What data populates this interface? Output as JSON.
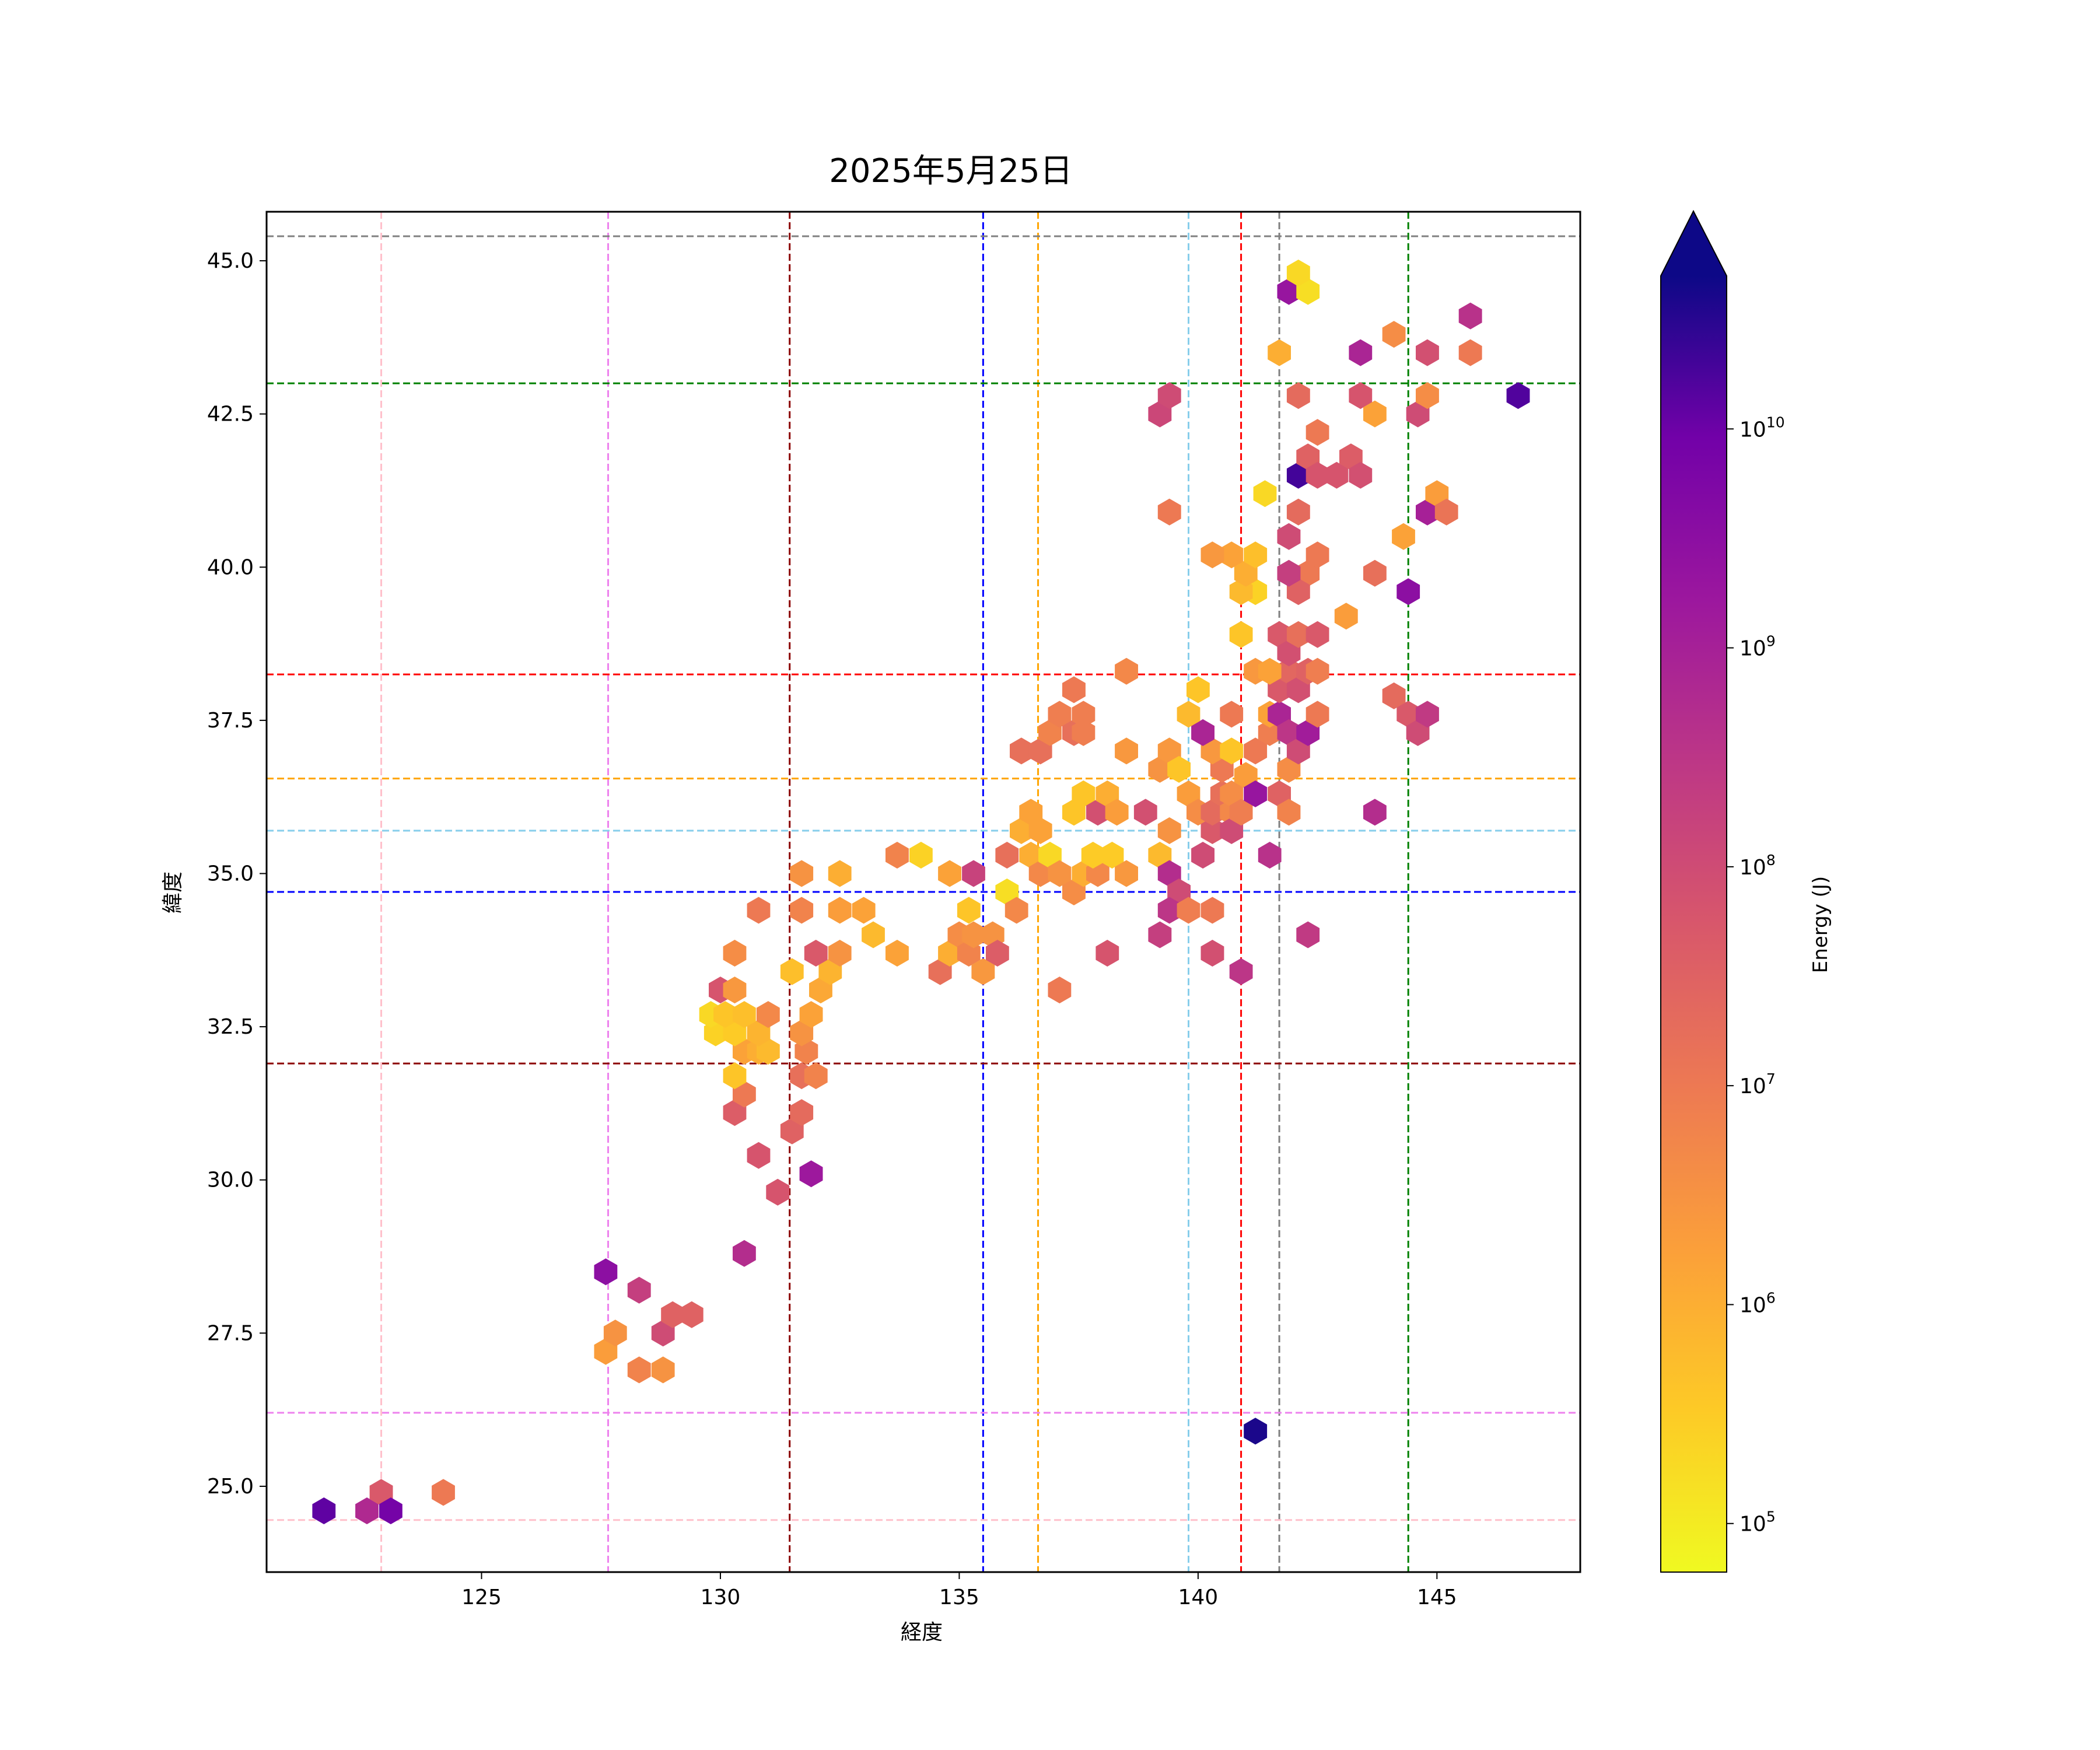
{
  "chart_data": {
    "type": "hexbin",
    "title": "2025年5月25日",
    "xlabel": "経度",
    "ylabel": "緯度",
    "xlim": [
      120.5,
      148.0
    ],
    "ylim": [
      23.6,
      45.8
    ],
    "x_ticks": [
      125,
      130,
      135,
      140,
      145
    ],
    "x_tick_labels": [
      "125",
      "130",
      "135",
      "140",
      "145"
    ],
    "y_ticks": [
      25.0,
      27.5,
      30.0,
      32.5,
      35.0,
      37.5,
      40.0,
      42.5,
      45.0
    ],
    "y_tick_labels": [
      "25.0",
      "27.5",
      "30.0",
      "32.5",
      "35.0",
      "37.5",
      "40.0",
      "42.5",
      "45.0"
    ],
    "grid": false,
    "colorbar": {
      "label": "Energy (J)",
      "scale": "log",
      "colormap": "plasma_r",
      "range": [
        60000,
        50000000000
      ],
      "extend": "max",
      "ticks": [
        100000,
        1000000,
        10000000,
        100000000,
        1000000000,
        10000000000
      ],
      "tick_bases": [
        "10",
        "10",
        "10",
        "10",
        "10",
        "10"
      ],
      "tick_exponents": [
        "5",
        "6",
        "7",
        "8",
        "9",
        "10"
      ]
    },
    "reference_lines": {
      "vertical": [
        {
          "x": 122.9,
          "color": "#ffc0cb"
        },
        {
          "x": 127.65,
          "color": "#ee82ee"
        },
        {
          "x": 131.45,
          "color": "#8b0000"
        },
        {
          "x": 135.5,
          "color": "#0000ff"
        },
        {
          "x": 136.65,
          "color": "#ffa500"
        },
        {
          "x": 139.8,
          "color": "#87ceeb"
        },
        {
          "x": 140.9,
          "color": "#ff0000"
        },
        {
          "x": 141.7,
          "color": "#808080"
        },
        {
          "x": 144.4,
          "color": "#008000"
        }
      ],
      "horizontal": [
        {
          "y": 24.45,
          "color": "#ffc0cb"
        },
        {
          "y": 26.2,
          "color": "#ee82ee"
        },
        {
          "y": 31.9,
          "color": "#8b0000"
        },
        {
          "y": 34.7,
          "color": "#0000ff"
        },
        {
          "y": 35.7,
          "color": "#87ceeb"
        },
        {
          "y": 36.55,
          "color": "#ffa500"
        },
        {
          "y": 38.25,
          "color": "#ff0000"
        },
        {
          "y": 43.0,
          "color": "#008000"
        },
        {
          "y": 45.4,
          "color": "#808080"
        }
      ]
    },
    "bins": [
      {
        "x": 121.7,
        "y": 24.6,
        "e": 10.1
      },
      {
        "x": 122.6,
        "y": 24.6,
        "e": 8.8
      },
      {
        "x": 122.9,
        "y": 24.9,
        "e": 7.7
      },
      {
        "x": 123.1,
        "y": 24.6,
        "e": 9.9
      },
      {
        "x": 124.2,
        "y": 24.9,
        "e": 7.0
      },
      {
        "x": 127.6,
        "y": 28.5,
        "e": 9.5
      },
      {
        "x": 128.3,
        "y": 28.2,
        "e": 8.3
      },
      {
        "x": 127.6,
        "y": 27.2,
        "e": 6.3
      },
      {
        "x": 127.8,
        "y": 27.5,
        "e": 6.5
      },
      {
        "x": 128.3,
        "y": 26.9,
        "e": 6.8
      },
      {
        "x": 128.8,
        "y": 26.9,
        "e": 6.5
      },
      {
        "x": 128.8,
        "y": 27.5,
        "e": 8.0
      },
      {
        "x": 129.0,
        "y": 27.8,
        "e": 7.5
      },
      {
        "x": 129.4,
        "y": 27.8,
        "e": 7.5
      },
      {
        "x": 130.5,
        "y": 28.8,
        "e": 8.7
      },
      {
        "x": 131.2,
        "y": 29.8,
        "e": 7.8
      },
      {
        "x": 131.9,
        "y": 30.1,
        "e": 9.2
      },
      {
        "x": 130.8,
        "y": 30.4,
        "e": 7.8
      },
      {
        "x": 131.5,
        "y": 30.8,
        "e": 7.5
      },
      {
        "x": 130.3,
        "y": 31.1,
        "e": 7.6
      },
      {
        "x": 131.7,
        "y": 31.1,
        "e": 7.3
      },
      {
        "x": 130.5,
        "y": 31.4,
        "e": 7.0
      },
      {
        "x": 130.3,
        "y": 31.7,
        "e": 5.6
      },
      {
        "x": 131.7,
        "y": 31.7,
        "e": 7.2
      },
      {
        "x": 132.0,
        "y": 31.7,
        "e": 6.8
      },
      {
        "x": 130.5,
        "y": 32.1,
        "e": 6.2
      },
      {
        "x": 130.8,
        "y": 32.1,
        "e": 6.0
      },
      {
        "x": 131.0,
        "y": 32.1,
        "e": 5.8
      },
      {
        "x": 131.8,
        "y": 32.1,
        "e": 6.8
      },
      {
        "x": 131.7,
        "y": 32.4,
        "e": 6.5
      },
      {
        "x": 129.9,
        "y": 32.4,
        "e": 5.4
      },
      {
        "x": 130.3,
        "y": 32.4,
        "e": 5.5
      },
      {
        "x": 130.8,
        "y": 32.4,
        "e": 5.9
      },
      {
        "x": 129.8,
        "y": 32.7,
        "e": 5.3
      },
      {
        "x": 130.1,
        "y": 32.7,
        "e": 5.6
      },
      {
        "x": 130.5,
        "y": 32.7,
        "e": 5.7
      },
      {
        "x": 131.0,
        "y": 32.7,
        "e": 6.7
      },
      {
        "x": 131.9,
        "y": 32.7,
        "e": 6.2
      },
      {
        "x": 130.0,
        "y": 33.1,
        "e": 7.8
      },
      {
        "x": 130.3,
        "y": 33.1,
        "e": 6.4
      },
      {
        "x": 132.1,
        "y": 33.1,
        "e": 6.1
      },
      {
        "x": 132.3,
        "y": 33.4,
        "e": 5.9
      },
      {
        "x": 131.5,
        "y": 33.4,
        "e": 5.7
      },
      {
        "x": 130.3,
        "y": 33.7,
        "e": 6.6
      },
      {
        "x": 132.0,
        "y": 33.7,
        "e": 7.7
      },
      {
        "x": 132.5,
        "y": 33.7,
        "e": 6.5
      },
      {
        "x": 130.8,
        "y": 34.4,
        "e": 7.0
      },
      {
        "x": 131.7,
        "y": 34.4,
        "e": 6.8
      },
      {
        "x": 132.5,
        "y": 34.4,
        "e": 6.3
      },
      {
        "x": 133.0,
        "y": 34.4,
        "e": 6.2
      },
      {
        "x": 133.2,
        "y": 34.0,
        "e": 5.8
      },
      {
        "x": 131.7,
        "y": 35.0,
        "e": 6.5
      },
      {
        "x": 132.5,
        "y": 35.0,
        "e": 6.0
      },
      {
        "x": 133.7,
        "y": 35.3,
        "e": 6.8
      },
      {
        "x": 134.2,
        "y": 35.3,
        "e": 5.4
      },
      {
        "x": 133.7,
        "y": 33.7,
        "e": 6.2
      },
      {
        "x": 134.6,
        "y": 33.4,
        "e": 7.2
      },
      {
        "x": 134.8,
        "y": 33.7,
        "e": 6.0
      },
      {
        "x": 134.8,
        "y": 35.0,
        "e": 6.2
      },
      {
        "x": 135.0,
        "y": 34.0,
        "e": 6.6
      },
      {
        "x": 135.2,
        "y": 34.4,
        "e": 5.6
      },
      {
        "x": 135.3,
        "y": 35.0,
        "e": 8.2
      },
      {
        "x": 135.2,
        "y": 33.7,
        "e": 6.8
      },
      {
        "x": 135.5,
        "y": 33.4,
        "e": 6.4
      },
      {
        "x": 135.3,
        "y": 34.0,
        "e": 6.5
      },
      {
        "x": 135.7,
        "y": 34.0,
        "e": 6.5
      },
      {
        "x": 135.8,
        "y": 33.7,
        "e": 7.6
      },
      {
        "x": 136.0,
        "y": 34.7,
        "e": 5.2
      },
      {
        "x": 136.0,
        "y": 35.3,
        "e": 7.2
      },
      {
        "x": 136.2,
        "y": 34.4,
        "e": 6.7
      },
      {
        "x": 136.3,
        "y": 35.7,
        "e": 6.0
      },
      {
        "x": 136.5,
        "y": 35.3,
        "e": 6.0
      },
      {
        "x": 136.7,
        "y": 35.0,
        "e": 6.7
      },
      {
        "x": 136.7,
        "y": 35.7,
        "e": 6.2
      },
      {
        "x": 136.9,
        "y": 35.3,
        "e": 5.3
      },
      {
        "x": 137.1,
        "y": 35.0,
        "e": 6.5
      },
      {
        "x": 137.1,
        "y": 33.1,
        "e": 7.0
      },
      {
        "x": 137.4,
        "y": 34.7,
        "e": 6.6
      },
      {
        "x": 137.6,
        "y": 35.0,
        "e": 6.0
      },
      {
        "x": 137.9,
        "y": 35.0,
        "e": 6.7
      },
      {
        "x": 137.8,
        "y": 35.3,
        "e": 5.5
      },
      {
        "x": 138.2,
        "y": 35.3,
        "e": 5.5
      },
      {
        "x": 138.5,
        "y": 35.0,
        "e": 6.4
      },
      {
        "x": 138.1,
        "y": 33.7,
        "e": 7.8
      },
      {
        "x": 136.5,
        "y": 36.0,
        "e": 6.2
      },
      {
        "x": 136.3,
        "y": 37.0,
        "e": 7.2
      },
      {
        "x": 136.7,
        "y": 37.0,
        "e": 7.2
      },
      {
        "x": 136.9,
        "y": 37.3,
        "e": 6.8
      },
      {
        "x": 137.1,
        "y": 37.6,
        "e": 6.9
      },
      {
        "x": 137.4,
        "y": 37.3,
        "e": 7.2
      },
      {
        "x": 137.4,
        "y": 38.0,
        "e": 7.0
      },
      {
        "x": 137.6,
        "y": 37.6,
        "e": 6.9
      },
      {
        "x": 137.6,
        "y": 37.3,
        "e": 6.9
      },
      {
        "x": 137.4,
        "y": 36.0,
        "e": 5.6
      },
      {
        "x": 137.6,
        "y": 36.3,
        "e": 5.6
      },
      {
        "x": 137.9,
        "y": 36.0,
        "e": 7.9
      },
      {
        "x": 138.1,
        "y": 36.3,
        "e": 6.0
      },
      {
        "x": 138.3,
        "y": 36.0,
        "e": 6.3
      },
      {
        "x": 138.5,
        "y": 37.0,
        "e": 6.4
      },
      {
        "x": 138.5,
        "y": 38.3,
        "e": 6.7
      },
      {
        "x": 138.9,
        "y": 36.0,
        "e": 7.9
      },
      {
        "x": 139.2,
        "y": 36.7,
        "e": 6.5
      },
      {
        "x": 139.4,
        "y": 37.0,
        "e": 6.4
      },
      {
        "x": 139.6,
        "y": 36.7,
        "e": 5.6
      },
      {
        "x": 139.2,
        "y": 35.3,
        "e": 5.8
      },
      {
        "x": 139.4,
        "y": 35.7,
        "e": 6.5
      },
      {
        "x": 139.4,
        "y": 35.0,
        "e": 8.7
      },
      {
        "x": 139.6,
        "y": 34.7,
        "e": 8.0
      },
      {
        "x": 139.2,
        "y": 34.0,
        "e": 8.3
      },
      {
        "x": 139.4,
        "y": 34.4,
        "e": 8.5
      },
      {
        "x": 139.8,
        "y": 34.4,
        "e": 6.9
      },
      {
        "x": 140.3,
        "y": 34.4,
        "e": 7.0
      },
      {
        "x": 140.3,
        "y": 33.7,
        "e": 7.9
      },
      {
        "x": 140.9,
        "y": 33.4,
        "e": 8.5
      },
      {
        "x": 141.2,
        "y": 25.9,
        "e": 10.6
      },
      {
        "x": 139.8,
        "y": 36.3,
        "e": 6.3
      },
      {
        "x": 140.0,
        "y": 36.0,
        "e": 6.6
      },
      {
        "x": 140.1,
        "y": 35.3,
        "e": 8.0
      },
      {
        "x": 140.3,
        "y": 35.7,
        "e": 7.7
      },
      {
        "x": 140.3,
        "y": 36.0,
        "e": 7.3
      },
      {
        "x": 140.5,
        "y": 36.3,
        "e": 7.2
      },
      {
        "x": 140.7,
        "y": 36.0,
        "e": 6.7
      },
      {
        "x": 140.7,
        "y": 35.7,
        "e": 8.0
      },
      {
        "x": 140.5,
        "y": 36.7,
        "e": 7.0
      },
      {
        "x": 140.7,
        "y": 36.3,
        "e": 6.6
      },
      {
        "x": 140.9,
        "y": 36.0,
        "e": 6.9
      },
      {
        "x": 140.3,
        "y": 37.0,
        "e": 6.4
      },
      {
        "x": 140.1,
        "y": 37.3,
        "e": 8.9
      },
      {
        "x": 139.8,
        "y": 37.6,
        "e": 5.8
      },
      {
        "x": 140.0,
        "y": 38.0,
        "e": 5.6
      },
      {
        "x": 140.7,
        "y": 37.6,
        "e": 7.0
      },
      {
        "x": 140.7,
        "y": 37.0,
        "e": 5.6
      },
      {
        "x": 141.0,
        "y": 36.6,
        "e": 6.3
      },
      {
        "x": 141.2,
        "y": 36.3,
        "e": 9.3
      },
      {
        "x": 141.5,
        "y": 35.3,
        "e": 8.6
      },
      {
        "x": 141.7,
        "y": 36.3,
        "e": 7.5
      },
      {
        "x": 141.9,
        "y": 36.0,
        "e": 6.8
      },
      {
        "x": 141.9,
        "y": 36.7,
        "e": 6.6
      },
      {
        "x": 141.2,
        "y": 37.0,
        "e": 7.0
      },
      {
        "x": 141.5,
        "y": 37.3,
        "e": 6.9
      },
      {
        "x": 141.5,
        "y": 37.6,
        "e": 6.2
      },
      {
        "x": 141.7,
        "y": 37.6,
        "e": 8.9
      },
      {
        "x": 141.9,
        "y": 37.3,
        "e": 8.5
      },
      {
        "x": 142.1,
        "y": 37.0,
        "e": 8.0
      },
      {
        "x": 142.3,
        "y": 37.3,
        "e": 9.1
      },
      {
        "x": 142.5,
        "y": 37.6,
        "e": 7.0
      },
      {
        "x": 141.7,
        "y": 38.0,
        "e": 7.7
      },
      {
        "x": 141.9,
        "y": 38.3,
        "e": 7.4
      },
      {
        "x": 142.1,
        "y": 38.0,
        "e": 7.9
      },
      {
        "x": 142.3,
        "y": 38.3,
        "e": 7.5
      },
      {
        "x": 142.5,
        "y": 38.3,
        "e": 6.9
      },
      {
        "x": 141.2,
        "y": 38.3,
        "e": 6.4
      },
      {
        "x": 141.5,
        "y": 38.3,
        "e": 6.2
      },
      {
        "x": 141.7,
        "y": 38.9,
        "e": 7.7
      },
      {
        "x": 141.9,
        "y": 38.6,
        "e": 7.9
      },
      {
        "x": 142.1,
        "y": 38.9,
        "e": 7.2
      },
      {
        "x": 142.5,
        "y": 38.9,
        "e": 7.7
      },
      {
        "x": 142.3,
        "y": 39.9,
        "e": 7.0
      },
      {
        "x": 142.1,
        "y": 39.6,
        "e": 7.5
      },
      {
        "x": 141.9,
        "y": 39.9,
        "e": 8.3
      },
      {
        "x": 141.2,
        "y": 39.6,
        "e": 5.4
      },
      {
        "x": 140.9,
        "y": 39.6,
        "e": 5.8
      },
      {
        "x": 140.9,
        "y": 38.9,
        "e": 5.6
      },
      {
        "x": 141.0,
        "y": 39.9,
        "e": 6.0
      },
      {
        "x": 141.2,
        "y": 40.2,
        "e": 5.7
      },
      {
        "x": 140.7,
        "y": 40.2,
        "e": 6.2
      },
      {
        "x": 140.3,
        "y": 40.2,
        "e": 6.4
      },
      {
        "x": 142.5,
        "y": 40.2,
        "e": 7.0
      },
      {
        "x": 143.1,
        "y": 39.2,
        "e": 6.3
      },
      {
        "x": 143.7,
        "y": 39.9,
        "e": 7.2
      },
      {
        "x": 144.4,
        "y": 39.6,
        "e": 9.5
      },
      {
        "x": 141.9,
        "y": 40.5,
        "e": 8.0
      },
      {
        "x": 142.1,
        "y": 40.9,
        "e": 7.3
      },
      {
        "x": 141.4,
        "y": 41.2,
        "e": 5.3
      },
      {
        "x": 142.1,
        "y": 41.5,
        "e": 10.3
      },
      {
        "x": 142.3,
        "y": 41.8,
        "e": 7.5
      },
      {
        "x": 142.5,
        "y": 41.5,
        "e": 7.8
      },
      {
        "x": 142.5,
        "y": 42.2,
        "e": 7.0
      },
      {
        "x": 142.9,
        "y": 41.5,
        "e": 7.8
      },
      {
        "x": 143.2,
        "y": 41.8,
        "e": 7.6
      },
      {
        "x": 143.4,
        "y": 41.5,
        "e": 7.9
      },
      {
        "x": 139.4,
        "y": 40.9,
        "e": 7.0
      },
      {
        "x": 139.2,
        "y": 42.5,
        "e": 8.1
      },
      {
        "x": 139.4,
        "y": 42.8,
        "e": 8.0
      },
      {
        "x": 142.1,
        "y": 42.8,
        "e": 7.3
      },
      {
        "x": 143.4,
        "y": 42.8,
        "e": 7.8
      },
      {
        "x": 143.7,
        "y": 42.5,
        "e": 6.2
      },
      {
        "x": 144.6,
        "y": 42.5,
        "e": 8.0
      },
      {
        "x": 144.8,
        "y": 42.8,
        "e": 6.6
      },
      {
        "x": 144.3,
        "y": 40.5,
        "e": 6.2
      },
      {
        "x": 144.8,
        "y": 40.9,
        "e": 9.0
      },
      {
        "x": 145.0,
        "y": 41.2,
        "e": 6.3
      },
      {
        "x": 145.2,
        "y": 40.9,
        "e": 7.1
      },
      {
        "x": 141.7,
        "y": 43.5,
        "e": 6.0
      },
      {
        "x": 143.4,
        "y": 43.5,
        "e": 8.9
      },
      {
        "x": 144.1,
        "y": 43.8,
        "e": 6.6
      },
      {
        "x": 144.8,
        "y": 43.5,
        "e": 7.9
      },
      {
        "x": 145.7,
        "y": 43.5,
        "e": 7.0
      },
      {
        "x": 145.7,
        "y": 44.1,
        "e": 8.6
      },
      {
        "x": 141.9,
        "y": 44.5,
        "e": 9.3
      },
      {
        "x": 142.3,
        "y": 44.5,
        "e": 5.2
      },
      {
        "x": 142.1,
        "y": 44.8,
        "e": 5.3
      },
      {
        "x": 146.7,
        "y": 42.8,
        "e": 10.2
      },
      {
        "x": 144.1,
        "y": 37.9,
        "e": 7.3
      },
      {
        "x": 144.4,
        "y": 37.6,
        "e": 7.7
      },
      {
        "x": 144.6,
        "y": 37.3,
        "e": 8.0
      },
      {
        "x": 144.8,
        "y": 37.6,
        "e": 8.4
      },
      {
        "x": 143.7,
        "y": 36.0,
        "e": 8.7
      },
      {
        "x": 142.3,
        "y": 34.0,
        "e": 8.4
      }
    ]
  }
}
